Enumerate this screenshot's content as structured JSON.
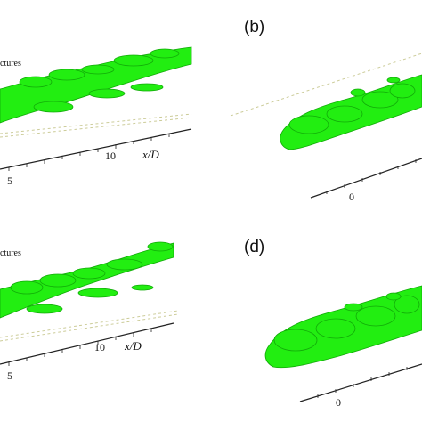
{
  "figure": {
    "panel_a": {
      "caption_fragment": "ctures",
      "axis_label": "x/D",
      "ticks": [
        "5",
        "10"
      ]
    },
    "panel_b": {
      "label": "(b)",
      "ticks": [
        "0"
      ]
    },
    "panel_c": {
      "caption_fragment": "ctures",
      "axis_label": "x/D",
      "ticks": [
        "5",
        "10"
      ]
    },
    "panel_d": {
      "label": "(d)",
      "ticks": [
        "0"
      ]
    },
    "colors": {
      "structure_fill": "#22ee11",
      "structure_dark": "#11aa08",
      "axis": "#222222",
      "wall_dash": "#cccc99"
    },
    "render_style": "isosurface vortex structures"
  }
}
